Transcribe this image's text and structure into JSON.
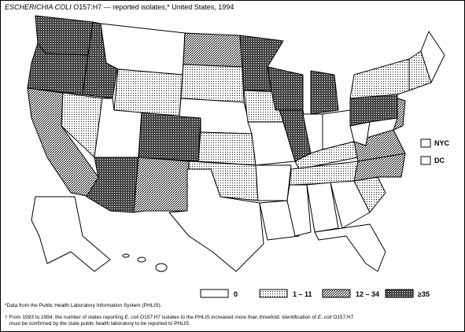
{
  "title": {
    "organism": "ESCHERICHIA COLI",
    "rest": "O157:H7 — reported isolates,* United States, 1994"
  },
  "legend": [
    "0",
    "1 – 11",
    "12 – 34",
    "≥35"
  ],
  "insets": [
    "NYC",
    "DC"
  ],
  "footnotes": {
    "first": "*Data from the Public Health Laboratory Information System (PHLIS).",
    "second": {
      "mark": "†",
      "lines": [
        [
          "From 1993 to 1994, the number of states reporting ",
          "E. coli",
          " O157:H7 isolates to the PHLIS increased more than threefold. Identification of ",
          "E. coli",
          " O157:H7"
        ],
        [
          "must be confirmed by the state public health laboratory to be reported to PHLIS."
        ]
      ]
    }
  }
}
